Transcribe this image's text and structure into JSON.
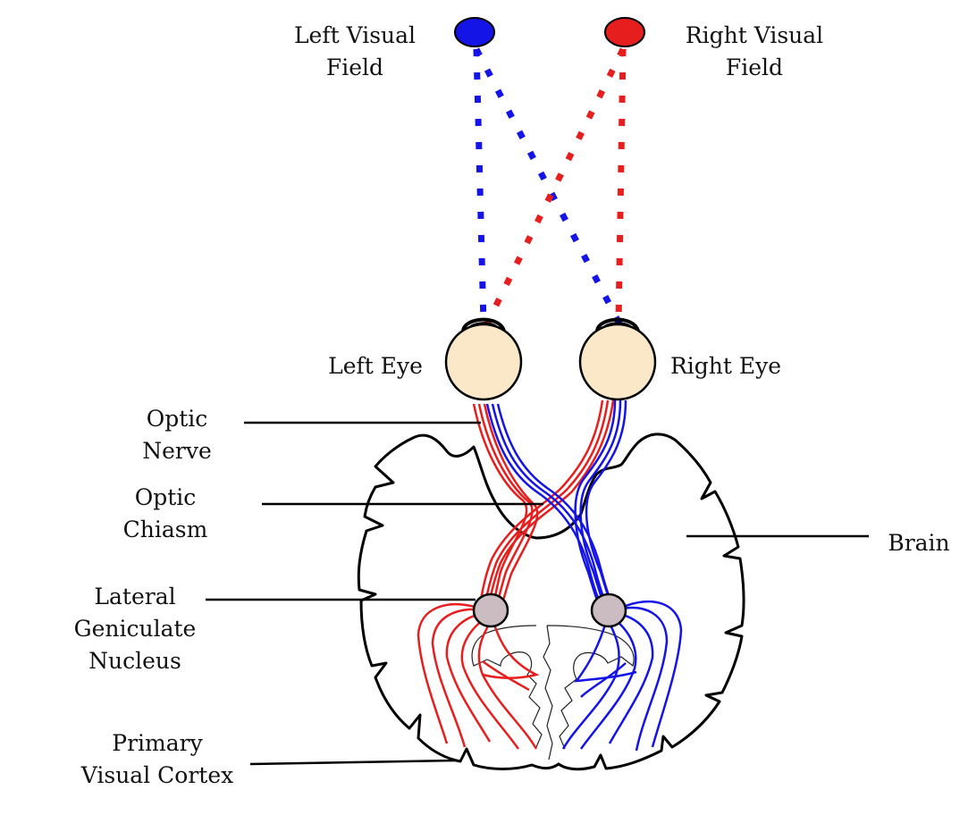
{
  "labels": {
    "left_visual_field": [
      "Left Visual",
      "Field"
    ],
    "right_visual_field": [
      "Right Visual",
      "Field"
    ],
    "left_eye": "Left Eye",
    "right_eye": "Right Eye",
    "optic_nerve": [
      "Optic",
      "Nerve"
    ],
    "optic_chiasm": [
      "Optic",
      "Chiasm"
    ],
    "lgn": [
      "Lateral",
      "Geniculate",
      "Nucleus"
    ],
    "primary_visual_cortex": [
      "Primary",
      "Visual Cortex"
    ],
    "brain": "Brain"
  },
  "colors": {
    "left_field": "#1414e6",
    "right_field": "#e61e1e",
    "eye_fill": "#fbe8c8",
    "lgn_fill": "#cbbcc2",
    "outline": "#000000"
  }
}
